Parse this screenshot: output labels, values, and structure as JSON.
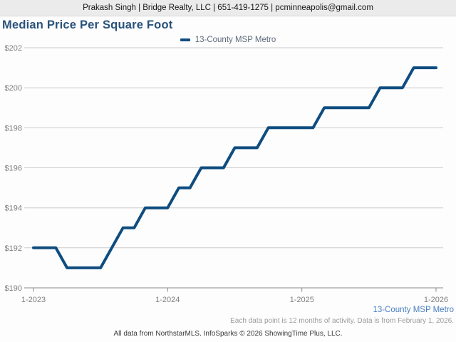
{
  "header": {
    "contact_line": "Prakash Singh | Bridge Realty, LLC | 651-419-1275 | pcminneapolis@gmail.com"
  },
  "chart_data": {
    "type": "line",
    "title": "Median Price Per Square Foot",
    "x": [
      "1-2023",
      "2-2023",
      "3-2023",
      "4-2023",
      "5-2023",
      "6-2023",
      "7-2023",
      "8-2023",
      "9-2023",
      "10-2023",
      "11-2023",
      "12-2023",
      "1-2024",
      "2-2024",
      "3-2024",
      "4-2024",
      "5-2024",
      "6-2024",
      "7-2024",
      "8-2024",
      "9-2024",
      "10-2024",
      "11-2024",
      "12-2024",
      "1-2025",
      "2-2025",
      "3-2025",
      "4-2025",
      "5-2025",
      "6-2025",
      "7-2025",
      "8-2025",
      "9-2025",
      "10-2025",
      "11-2025",
      "12-2025",
      "1-2026"
    ],
    "series": [
      {
        "name": "13-County MSP Metro",
        "color": "#0f4d80",
        "values": [
          192,
          192,
          192,
          191,
          191,
          191,
          191,
          192,
          193,
          193,
          194,
          194,
          194,
          195,
          195,
          196,
          196,
          196,
          197,
          197,
          197,
          198,
          198,
          198,
          198,
          198,
          199,
          199,
          199,
          199,
          199,
          200,
          200,
          200,
          201,
          201,
          201
        ]
      }
    ],
    "ylim": [
      190,
      202
    ],
    "y_ticks": [
      190,
      192,
      194,
      196,
      198,
      200,
      202
    ],
    "y_tick_prefix": "$",
    "x_tick_labels": [
      "1-2023",
      "1-2024",
      "1-2025",
      "1-2026"
    ],
    "x_tick_indices": [
      0,
      12,
      24,
      36
    ],
    "grid": "horizontal",
    "legend_position": "top-center",
    "xlabel": "",
    "ylabel": ""
  },
  "footnotes": {
    "series_link": "13-County MSP Metro",
    "data_note": "Each data point is 12 months of activity. Data is from February 1, 2026.",
    "attribution": "All data from NorthstarMLS. InfoSparks © 2026 ShowingTime Plus, LLC."
  },
  "colors": {
    "series_line": "#0f4d80",
    "title_navy": "#29527a",
    "link_blue": "#4a7fc1",
    "axis_text_gray": "#7f7f7f",
    "gridline_gray": "#cccccc",
    "axis_line_gray": "#8c8c8c",
    "note_gray": "#9b9b9b",
    "header_bg": "#ebebeb"
  }
}
